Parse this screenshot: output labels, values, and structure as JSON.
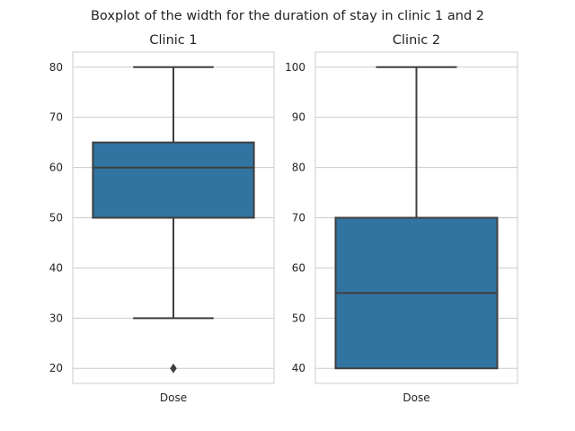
{
  "suptitle": "Boxplot of the width for the duration of stay in clinic 1 and 2",
  "chart_data": [
    {
      "type": "boxplot",
      "title": "Clinic 1",
      "categories": [
        "Dose"
      ],
      "ylim": [
        17,
        83
      ],
      "yticks": [
        20,
        30,
        40,
        50,
        60,
        70,
        80
      ],
      "grid": true,
      "color": "#3274a1",
      "boxes": [
        {
          "category": "Dose",
          "whisker_low": 30,
          "q1": 50,
          "median": 60,
          "q3": 65,
          "whisker_high": 80,
          "outliers": [
            20
          ]
        }
      ]
    },
    {
      "type": "boxplot",
      "title": "Clinic 2",
      "categories": [
        "Dose"
      ],
      "ylim": [
        37,
        103
      ],
      "yticks": [
        40,
        50,
        60,
        70,
        80,
        90,
        100
      ],
      "grid": true,
      "color": "#3274a1",
      "boxes": [
        {
          "category": "Dose",
          "whisker_low": 40,
          "q1": 40,
          "median": 55,
          "q3": 70,
          "whisker_high": 100,
          "outliers": []
        }
      ]
    }
  ]
}
